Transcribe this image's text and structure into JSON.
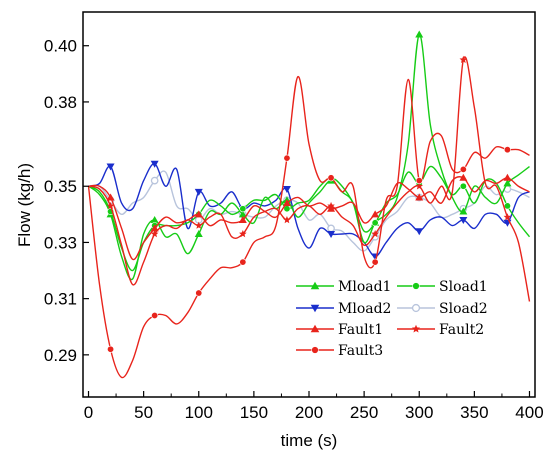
{
  "chart_data": {
    "type": "line",
    "xlabel": "time (s)",
    "ylabel": "Flow (kg/h)",
    "xlim": [
      -5,
      405
    ],
    "ylim": [
      0.275,
      0.412
    ],
    "x_ticks": [
      0,
      50,
      100,
      150,
      200,
      250,
      300,
      350,
      400
    ],
    "y_ticks": [
      0.29,
      0.31,
      0.33,
      0.35,
      0.38,
      0.4
    ],
    "y_tick_labels": [
      "0.29",
      "0.31",
      "0.33",
      "0.35",
      "0.38",
      "0.40"
    ],
    "grid": false,
    "legend_position": "bottom-center",
    "series": [
      {
        "name": "Mload1",
        "color": "#16cc16",
        "marker": "triangle-up",
        "x": [
          0,
          10,
          20,
          30,
          40,
          50,
          60,
          70,
          80,
          90,
          100,
          110,
          120,
          130,
          140,
          150,
          160,
          170,
          180,
          190,
          200,
          210,
          220,
          230,
          240,
          250,
          260,
          270,
          280,
          290,
          300,
          310,
          320,
          330,
          340,
          350,
          360,
          370,
          380,
          390,
          400
        ],
        "y": [
          0.35,
          0.347,
          0.34,
          0.325,
          0.317,
          0.333,
          0.338,
          0.332,
          0.333,
          0.326,
          0.333,
          0.341,
          0.34,
          0.344,
          0.34,
          0.337,
          0.346,
          0.342,
          0.345,
          0.339,
          0.344,
          0.348,
          0.352,
          0.348,
          0.344,
          0.33,
          0.337,
          0.34,
          0.346,
          0.365,
          0.404,
          0.372,
          0.356,
          0.346,
          0.341,
          0.35,
          0.346,
          0.344,
          0.351,
          0.354,
          0.357
        ]
      },
      {
        "name": "Mload2",
        "color": "#1a2ecc",
        "marker": "triangle-down",
        "x": [
          0,
          10,
          20,
          30,
          40,
          50,
          60,
          70,
          80,
          90,
          100,
          110,
          120,
          130,
          140,
          150,
          160,
          170,
          180,
          190,
          200,
          210,
          220,
          230,
          240,
          250,
          260,
          270,
          280,
          290,
          300,
          310,
          320,
          330,
          340,
          350,
          360,
          370,
          380,
          390,
          400
        ],
        "y": [
          0.35,
          0.351,
          0.357,
          0.344,
          0.342,
          0.352,
          0.358,
          0.35,
          0.356,
          0.335,
          0.348,
          0.343,
          0.344,
          0.348,
          0.342,
          0.344,
          0.343,
          0.345,
          0.349,
          0.335,
          0.328,
          0.335,
          0.333,
          0.333,
          0.333,
          0.33,
          0.325,
          0.33,
          0.335,
          0.337,
          0.334,
          0.338,
          0.339,
          0.336,
          0.338,
          0.335,
          0.34,
          0.34,
          0.337,
          0.346,
          0.348
        ]
      },
      {
        "name": "Fault1",
        "color": "#e8241c",
        "marker": "triangle-up",
        "x": [
          0,
          10,
          20,
          30,
          40,
          50,
          60,
          70,
          80,
          90,
          100,
          110,
          120,
          130,
          140,
          150,
          160,
          170,
          180,
          190,
          200,
          210,
          220,
          230,
          240,
          250,
          260,
          270,
          280,
          290,
          300,
          310,
          320,
          330,
          340,
          350,
          360,
          370,
          380,
          390,
          400
        ],
        "y": [
          0.35,
          0.35,
          0.346,
          0.335,
          0.324,
          0.33,
          0.335,
          0.339,
          0.337,
          0.338,
          0.34,
          0.336,
          0.338,
          0.337,
          0.338,
          0.343,
          0.341,
          0.339,
          0.344,
          0.346,
          0.343,
          0.344,
          0.342,
          0.343,
          0.344,
          0.337,
          0.34,
          0.343,
          0.351,
          0.349,
          0.346,
          0.348,
          0.344,
          0.352,
          0.353,
          0.348,
          0.352,
          0.351,
          0.353,
          0.35,
          0.348
        ]
      },
      {
        "name": "Fault3",
        "color": "#e8241c",
        "marker": "circle",
        "x": [
          0,
          10,
          20,
          30,
          40,
          50,
          60,
          70,
          80,
          90,
          100,
          110,
          120,
          130,
          140,
          150,
          160,
          170,
          180,
          190,
          200,
          210,
          220,
          230,
          240,
          250,
          260,
          270,
          280,
          290,
          300,
          310,
          320,
          330,
          340,
          350,
          360,
          370,
          380,
          390,
          400
        ],
        "y": [
          0.35,
          0.315,
          0.292,
          0.282,
          0.288,
          0.3,
          0.304,
          0.304,
          0.301,
          0.305,
          0.312,
          0.317,
          0.321,
          0.321,
          0.323,
          0.33,
          0.332,
          0.336,
          0.36,
          0.389,
          0.365,
          0.352,
          0.353,
          0.348,
          0.35,
          0.325,
          0.323,
          0.345,
          0.35,
          0.388,
          0.352,
          0.366,
          0.368,
          0.356,
          0.356,
          0.362,
          0.36,
          0.364,
          0.363,
          0.363,
          0.361
        ]
      },
      {
        "name": "Sload1",
        "color": "#16cc16",
        "marker": "circle",
        "x": [
          0,
          10,
          20,
          30,
          40,
          50,
          60,
          70,
          80,
          90,
          100,
          110,
          120,
          130,
          140,
          150,
          160,
          170,
          180,
          190,
          200,
          210,
          220,
          230,
          240,
          250,
          260,
          270,
          280,
          290,
          300,
          310,
          320,
          330,
          340,
          350,
          360,
          370,
          380,
          390,
          400
        ],
        "y": [
          0.35,
          0.348,
          0.341,
          0.328,
          0.32,
          0.33,
          0.336,
          0.336,
          0.336,
          0.337,
          0.34,
          0.345,
          0.343,
          0.34,
          0.342,
          0.345,
          0.345,
          0.347,
          0.342,
          0.344,
          0.345,
          0.35,
          0.353,
          0.35,
          0.344,
          0.334,
          0.337,
          0.344,
          0.347,
          0.355,
          0.351,
          0.357,
          0.353,
          0.347,
          0.35,
          0.344,
          0.352,
          0.351,
          0.343,
          0.337,
          0.332
        ]
      },
      {
        "name": "Sload2",
        "color": "#b8c4dc",
        "marker": "open-circle",
        "x": [
          0,
          10,
          20,
          30,
          40,
          50,
          60,
          70,
          80,
          90,
          100,
          110,
          120,
          130,
          140,
          150,
          160,
          170,
          180,
          190,
          200,
          210,
          220,
          230,
          240,
          250,
          260,
          270,
          280,
          290,
          300,
          310,
          320,
          330,
          340,
          350,
          360,
          370,
          380,
          390,
          400
        ],
        "y": [
          0.35,
          0.35,
          0.345,
          0.34,
          0.344,
          0.346,
          0.352,
          0.355,
          0.343,
          0.342,
          0.338,
          0.342,
          0.34,
          0.341,
          0.34,
          0.339,
          0.339,
          0.343,
          0.345,
          0.344,
          0.338,
          0.34,
          0.335,
          0.334,
          0.33,
          0.327,
          0.332,
          0.338,
          0.341,
          0.346,
          0.346,
          0.344,
          0.339,
          0.34,
          0.342,
          0.344,
          0.35,
          0.347,
          0.349,
          0.348,
          0.346
        ]
      },
      {
        "name": "Fault2",
        "color": "#e8241c",
        "marker": "star",
        "x": [
          0,
          10,
          20,
          30,
          40,
          50,
          60,
          70,
          80,
          90,
          100,
          110,
          120,
          130,
          140,
          150,
          160,
          170,
          180,
          190,
          200,
          210,
          220,
          230,
          240,
          250,
          260,
          270,
          280,
          290,
          300,
          310,
          320,
          330,
          340,
          350,
          360,
          370,
          380,
          390,
          400
        ],
        "y": [
          0.35,
          0.349,
          0.343,
          0.329,
          0.315,
          0.323,
          0.333,
          0.336,
          0.335,
          0.338,
          0.336,
          0.339,
          0.34,
          0.332,
          0.333,
          0.339,
          0.341,
          0.342,
          0.338,
          0.342,
          0.343,
          0.34,
          0.343,
          0.339,
          0.336,
          0.329,
          0.333,
          0.339,
          0.344,
          0.348,
          0.35,
          0.344,
          0.35,
          0.348,
          0.395,
          0.378,
          0.351,
          0.35,
          0.339,
          0.33,
          0.309
        ]
      }
    ]
  }
}
